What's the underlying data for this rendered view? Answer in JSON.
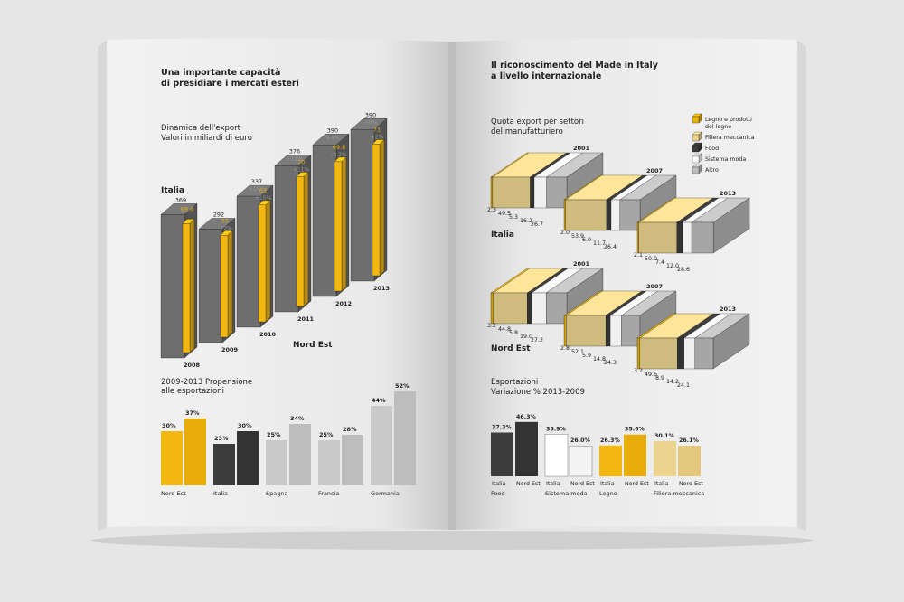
{
  "left_page": {
    "title_line1": "Una importante capacità",
    "title_line2": "di presidiare i mercati esteri",
    "export_chart_title1": "Dinamica dell'export",
    "export_chart_title2": "Valori in miliardi di euro",
    "label_italia": "Italia",
    "label_nordest": "Nord Est",
    "propensione_title1": "2009-2013 Propensione",
    "propensione_title2": "alle esportazioni"
  },
  "right_page": {
    "title_line1": "Il riconoscimento del Made in Italy",
    "title_line2": "a livello internazionale",
    "quota_title1": "Quota export per settori",
    "quota_title2": "del manufatturiero",
    "label_italia": "Italia",
    "label_nordest": "Nord Est",
    "variazione_title1": "Esportazioni",
    "variazione_title2": "Variazione % 2013-2009",
    "legend": [
      {
        "label": "Legno e prodotti",
        "label2": "del legno",
        "color": "#e8b30c"
      },
      {
        "label": "Filiera meccanica",
        "label2": "",
        "color": "#ecd48f"
      },
      {
        "label": "Food",
        "label2": "",
        "color": "#3a3a3a"
      },
      {
        "label": "Sistema moda",
        "label2": "",
        "color": "#ffffff"
      },
      {
        "label": "Altro",
        "label2": "",
        "color": "#bdbdbd"
      }
    ]
  },
  "chart_data": [
    {
      "type": "bar",
      "title": "Dinamica dell'export",
      "subtitle": "Valori in miliardi di euro",
      "categories": [
        "2008",
        "2009",
        "2010",
        "2011",
        "2012",
        "2013"
      ],
      "series": [
        {
          "name": "Italia",
          "values": [
            369,
            292,
            337,
            376,
            390,
            390
          ],
          "labels": [
            "369",
            "292",
            "337",
            "376",
            "390",
            "390"
          ],
          "change_labels": [
            "",
            "",
            "+15%",
            "+11%",
            "+4%",
            "+0%"
          ],
          "color": "#6e6e6e"
        },
        {
          "name": "Nord Est",
          "values": [
            69.6,
            55,
            63,
            70,
            69.8,
            71
          ],
          "labels": [
            "69.6",
            "55",
            "63",
            "70",
            "69.8",
            "71"
          ],
          "change_labels": [
            "",
            "-22%",
            "+15%",
            "+11%",
            "-0.2%",
            "+2%"
          ],
          "color": "#f2b811"
        }
      ]
    },
    {
      "type": "bar",
      "title": "2009-2013 Propensione alle esportazioni",
      "categories": [
        "Nord Est",
        "Italia",
        "Spagna",
        "Francia",
        "Germania"
      ],
      "series": [
        {
          "name": "2009",
          "values": [
            30,
            23,
            25,
            25,
            44
          ],
          "labels": [
            "30%",
            "23%",
            "25%",
            "25%",
            "44%"
          ]
        },
        {
          "name": "2013",
          "values": [
            37,
            30,
            34,
            28,
            52
          ],
          "labels": [
            "37%",
            "30%",
            "34%",
            "28%",
            "52%"
          ]
        }
      ],
      "colors": [
        "#f2b811",
        "#3c3c3c",
        "#c9c9c9",
        "#c9c9c9",
        "#c9c9c9"
      ],
      "colors_front": [
        "#e8ad0b",
        "#333333",
        "#bdbdbd",
        "#bdbdbd",
        "#bdbdbd"
      ],
      "unit": "%"
    },
    {
      "type": "bar",
      "title": "Quota export per settori del manufatturiero",
      "stacked": true,
      "sectors": [
        "Legno e prodotti del legno",
        "Filiera meccanica",
        "Food",
        "Sistema moda",
        "Altro"
      ],
      "groups": [
        {
          "region": "Italia",
          "year": "2001",
          "values": [
            2.3,
            49.5,
            5.3,
            16.2,
            26.7
          ],
          "labels": [
            "2.3",
            "49.5",
            "5.3",
            "16.2",
            "26.7"
          ]
        },
        {
          "region": "Italia",
          "year": "2007",
          "values": [
            2.0,
            53.9,
            6.0,
            11.7,
            26.4
          ],
          "labels": [
            "2.0",
            "53.9",
            "6.0",
            "11.7",
            "26.4"
          ]
        },
        {
          "region": "Italia",
          "year": "2013",
          "values": [
            2.1,
            50.0,
            7.4,
            12.0,
            28.6
          ],
          "labels": [
            "2.1",
            "50.0",
            "7.4",
            "12.0",
            "28.6"
          ]
        },
        {
          "region": "Nord Est",
          "year": "2001",
          "values": [
            3.2,
            44.8,
            5.8,
            19.0,
            27.2
          ],
          "labels": [
            "3.2",
            "44.8",
            "5.8",
            "19.0",
            "27.2"
          ]
        },
        {
          "region": "Nord Est",
          "year": "2007",
          "values": [
            2.8,
            52.1,
            5.9,
            14.8,
            24.3
          ],
          "labels": [
            "2.8",
            "52.1",
            "5.9",
            "14.8",
            "24.3"
          ]
        },
        {
          "region": "Nord Est",
          "year": "2013",
          "values": [
            3.2,
            49.6,
            8.9,
            14.2,
            24.1
          ],
          "labels": [
            "3.2",
            "49.6",
            "8.9",
            "14.2",
            "24.1"
          ]
        }
      ]
    },
    {
      "type": "bar",
      "title": "Esportazioni Variazione % 2013-2009",
      "categories": [
        "Food",
        "Sistema moda",
        "Legno",
        "Filiera meccanica"
      ],
      "series": [
        {
          "name": "Italia",
          "values": [
            37.3,
            35.9,
            26.3,
            30.1
          ],
          "labels": [
            "37.3%",
            "35.9%",
            "26.3%",
            "30.1%"
          ]
        },
        {
          "name": "Nord Est",
          "values": [
            46.3,
            26.0,
            35.6,
            26.1
          ],
          "labels": [
            "46.3%",
            "26.0%",
            "35.6%",
            "26.1%"
          ]
        }
      ],
      "colors": [
        "#3c3c3c",
        "#ffffff",
        "#f2b811",
        "#ecd48f"
      ],
      "colors_front": [
        "#333333",
        "#f4f4f4",
        "#e8ad0b",
        "#e2c77c"
      ],
      "unit": "%"
    }
  ]
}
